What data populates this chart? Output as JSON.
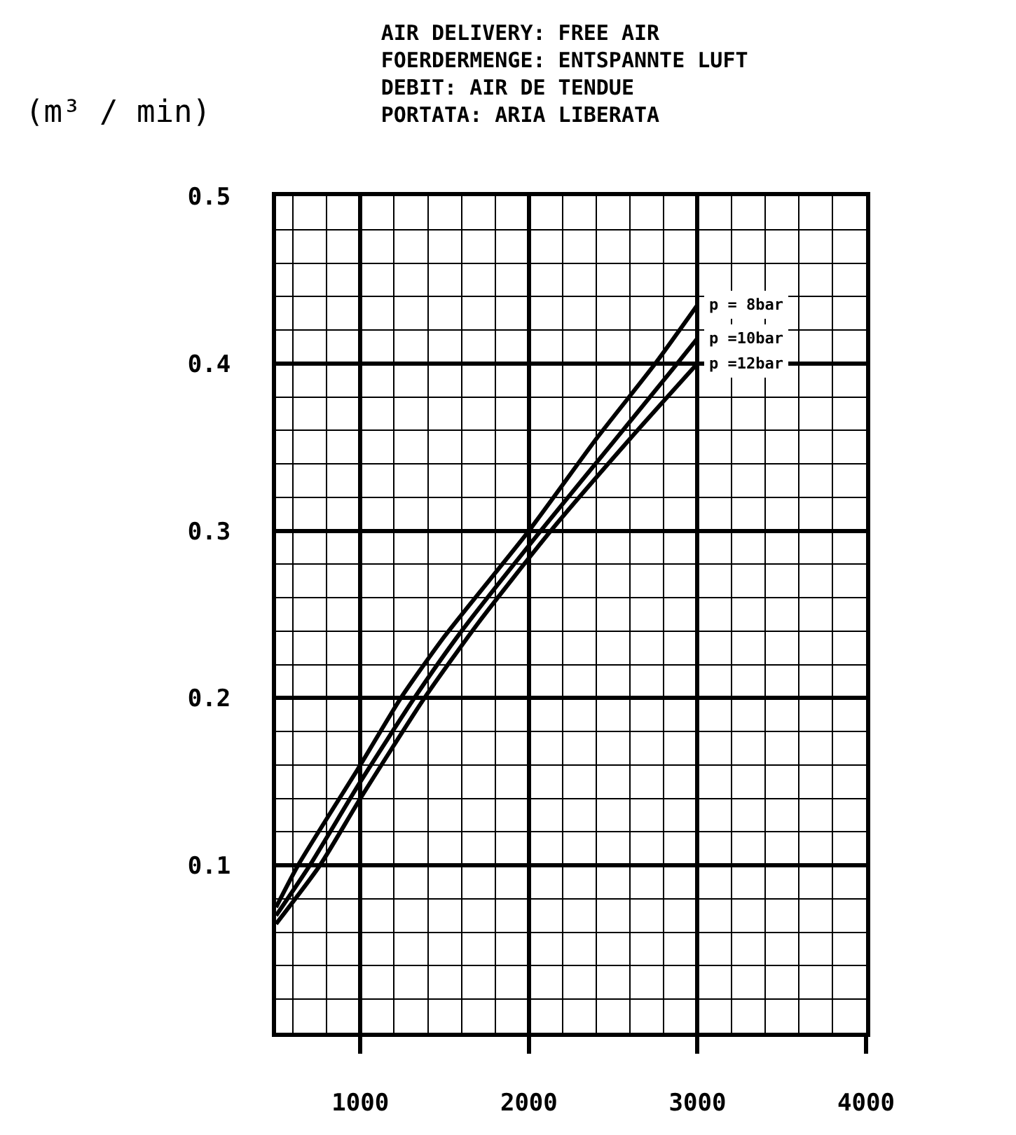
{
  "chart_data": {
    "type": "line",
    "title": "AIR DELIVERY: FREE AIR\nFOERDERMENGE: ENTSPANNTE LUFT\nDEBIT: AIR DE TENDUE\nPORTATA: ARIA LIBERATA",
    "ylabel": "(m³ / min)",
    "series": [
      {
        "name": "p = 8bar",
        "color": "#000000",
        "x": [
          500,
          630,
          1000,
          1240,
          1500,
          2000,
          2400,
          2750,
          3000
        ],
        "values": [
          0.075,
          0.1,
          0.16,
          0.2,
          0.237,
          0.3,
          0.355,
          0.4,
          0.435
        ]
      },
      {
        "name": "p =10bar",
        "color": "#000000",
        "x": [
          500,
          700,
          1000,
          1320,
          1600,
          2070,
          2500,
          2880,
          3000
        ],
        "values": [
          0.07,
          0.1,
          0.15,
          0.2,
          0.24,
          0.3,
          0.353,
          0.4,
          0.415
        ]
      },
      {
        "name": "p =12bar",
        "color": "#000000",
        "x": [
          500,
          760,
          1000,
          1380,
          1700,
          2130,
          2600,
          3000
        ],
        "values": [
          0.065,
          0.1,
          0.14,
          0.2,
          0.245,
          0.3,
          0.355,
          0.4
        ]
      }
    ],
    "xlim": [
      500,
      4000
    ],
    "xticks": [
      {
        "value": 600,
        "label": null
      },
      {
        "value": 800,
        "label": null
      },
      1000,
      {
        "value": 1200,
        "label": null
      },
      {
        "value": 1400,
        "label": null
      },
      {
        "value": 1600,
        "label": null
      },
      {
        "value": 1800,
        "label": null
      },
      2000,
      {
        "value": 2200,
        "label": null
      },
      {
        "value": 2400,
        "label": null
      },
      {
        "value": 2600,
        "label": null
      },
      {
        "value": 2800,
        "label": null
      },
      3000,
      {
        "value": 3200,
        "label": null
      },
      {
        "value": 3400,
        "label": null
      },
      {
        "value": 3600,
        "label": null
      },
      {
        "value": 3800,
        "label": null
      },
      4000
    ],
    "ylim": [
      0,
      0.5
    ],
    "yticks": [
      {
        "value": 0.02,
        "label": null
      },
      {
        "value": 0.04,
        "label": null
      },
      {
        "value": 0.06,
        "label": null
      },
      {
        "value": 0.08,
        "label": null
      },
      0.1,
      {
        "value": 0.12,
        "label": null
      },
      {
        "value": 0.14,
        "label": null
      },
      {
        "value": 0.16,
        "label": null
      },
      {
        "value": 0.18,
        "label": null
      },
      0.2,
      {
        "value": 0.22,
        "label": null
      },
      {
        "value": 0.24,
        "label": null
      },
      {
        "value": 0.26,
        "label": null
      },
      {
        "value": 0.28,
        "label": null
      },
      0.3,
      {
        "value": 0.32,
        "label": null
      },
      {
        "value": 0.34,
        "label": null
      },
      {
        "value": 0.36,
        "label": null
      },
      {
        "value": 0.38,
        "label": null
      },
      0.4,
      {
        "value": 0.42,
        "label": null
      },
      {
        "value": 0.44,
        "label": null
      },
      {
        "value": 0.46,
        "label": null
      },
      {
        "value": 0.48,
        "label": null
      },
      0.5
    ],
    "grid": true,
    "legend": false
  }
}
